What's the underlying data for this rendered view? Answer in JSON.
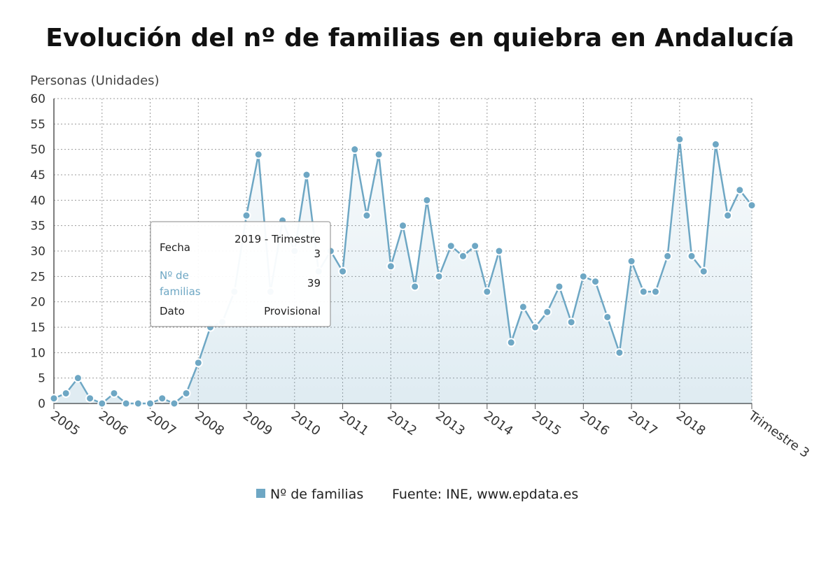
{
  "chart_data": {
    "type": "area",
    "title": "Evolución del nº de familias en quiebra en Andalucía",
    "ylabel": "Personas (Unidades)",
    "ylim": [
      0,
      60
    ],
    "yticks": [
      0,
      5,
      10,
      15,
      20,
      25,
      30,
      35,
      40,
      45,
      50,
      55,
      60
    ],
    "x_tick_labels": [
      "2005",
      "2006",
      "2007",
      "2008",
      "2009",
      "2010",
      "2011",
      "2012",
      "2013",
      "2014",
      "2015",
      "2016",
      "2017",
      "2018",
      "Trimestre 3"
    ],
    "grid": true,
    "series": [
      {
        "name": "Nº de familias",
        "color": "#6ea7c4",
        "values": [
          1,
          2,
          5,
          1,
          0,
          2,
          0,
          0,
          0,
          1,
          0,
          2,
          8,
          15,
          16,
          22,
          37,
          49,
          22,
          36,
          30,
          45,
          26,
          30,
          26,
          50,
          37,
          49,
          27,
          35,
          23,
          40,
          25,
          31,
          29,
          31,
          22,
          30,
          12,
          19,
          15,
          18,
          23,
          16,
          25,
          24,
          17,
          10,
          28,
          22,
          22,
          29,
          52,
          29,
          26,
          51,
          37,
          42,
          39
        ]
      }
    ],
    "legend": {
      "position": "bottom",
      "label": "Nº de familias"
    },
    "source": "Fuente: INE, www.epdata.es",
    "tooltip": {
      "rows": [
        {
          "label": "Fecha",
          "value": "2019 - Trimestre 3"
        },
        {
          "label": "Nº de familias",
          "value": "39"
        },
        {
          "label": "Dato",
          "value": "Provisional"
        }
      ]
    }
  }
}
